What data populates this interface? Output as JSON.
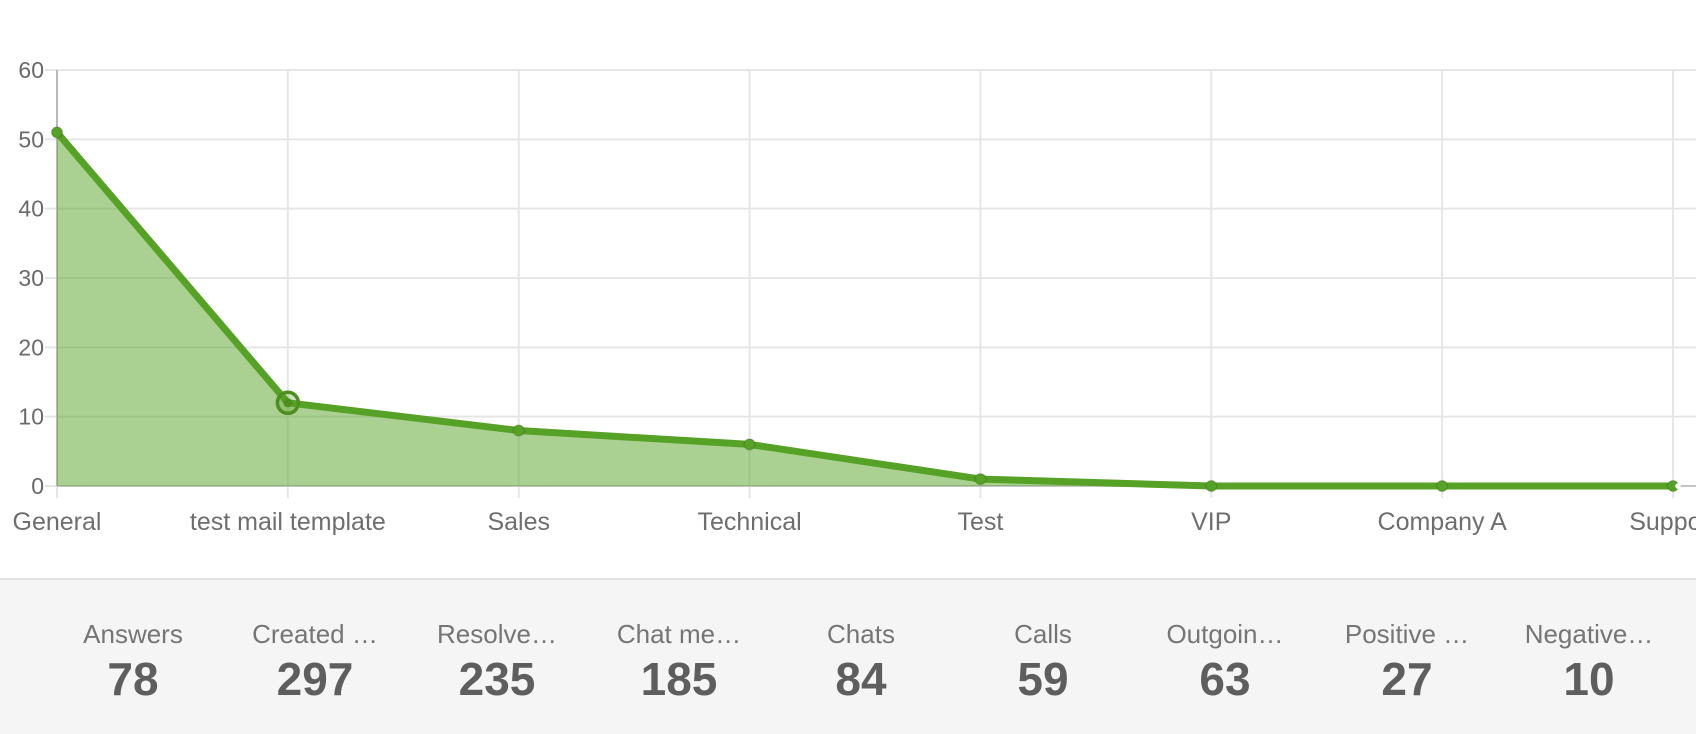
{
  "chart_data": {
    "type": "area",
    "title": "",
    "categories": [
      "General",
      "test mail template",
      "Sales",
      "Technical",
      "Test",
      "VIP",
      "Company A",
      "Support"
    ],
    "series": [
      {
        "values": [
          51,
          12,
          8,
          6,
          1,
          0,
          0,
          0
        ]
      }
    ],
    "highlighted_index": 1,
    "ylim": [
      0,
      60
    ],
    "yticks": [
      0,
      10,
      20,
      30,
      40,
      50,
      60
    ],
    "grid": true,
    "legend": false,
    "colors": {
      "line": "#56a226",
      "fill": "rgba(86,162,38,0.5)",
      "gridline": "#e6e6e6",
      "axis": "#b9b9b9",
      "baseline": "#c4c4c4",
      "tick_label": "#6a6a6a",
      "x_label": "#6e6e6e",
      "point_ring_stroke": "#4e8e1e"
    }
  },
  "stats": {
    "items": [
      {
        "label": "Answers",
        "value": "78"
      },
      {
        "label": "Created …",
        "value": "297"
      },
      {
        "label": "Resolve…",
        "value": "235"
      },
      {
        "label": "Chat me…",
        "value": "185"
      },
      {
        "label": "Chats",
        "value": "84"
      },
      {
        "label": "Calls",
        "value": "59"
      },
      {
        "label": "Outgoin…",
        "value": "63"
      },
      {
        "label": "Positive …",
        "value": "27"
      },
      {
        "label": "Negative…",
        "value": "10"
      }
    ]
  }
}
